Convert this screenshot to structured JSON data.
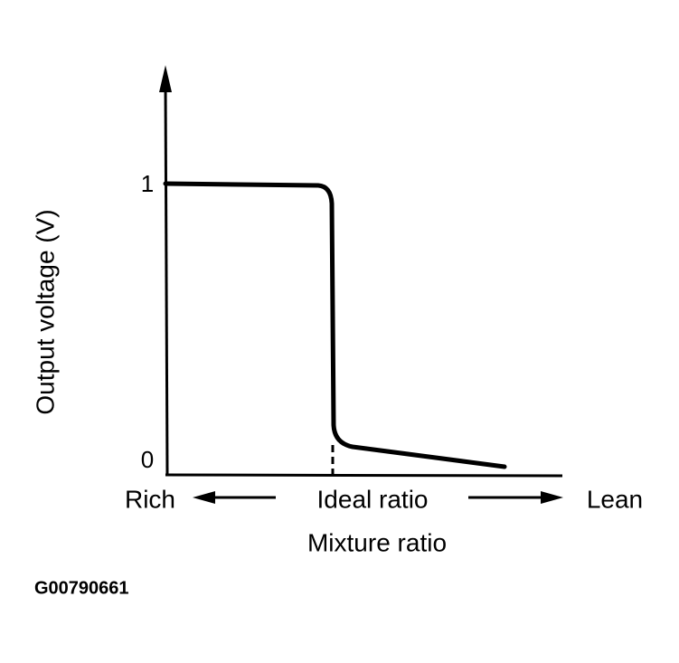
{
  "axes": {
    "y_label": "Output voltage (V)",
    "y_ticks": [
      "1",
      "0"
    ],
    "x_label": "Mixture ratio",
    "x_labels": {
      "left": "Rich",
      "center": "Ideal ratio",
      "right": "Lean"
    }
  },
  "figure_id": "G00790661"
}
